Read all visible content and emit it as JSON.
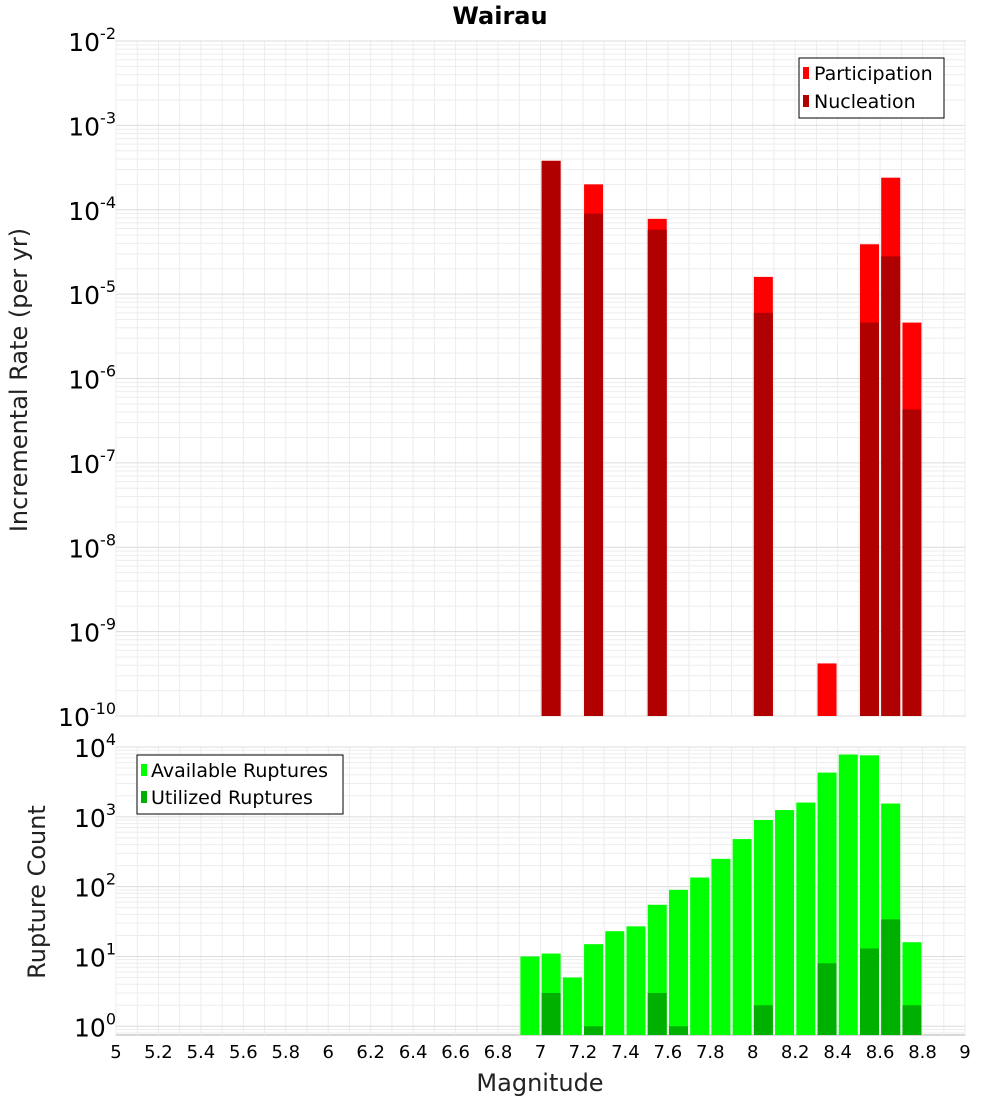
{
  "chart_data": [
    {
      "type": "bar",
      "title": "Wairau",
      "ylabel": "Incremental Rate (per yr)",
      "yscale": "log",
      "ylim": [
        1e-10,
        0.01
      ],
      "xlim": [
        5,
        9
      ],
      "grid": true,
      "legend_position": "top-right",
      "x": [
        7.05,
        7.25,
        7.55,
        8.05,
        8.35,
        8.55,
        8.65,
        8.75
      ],
      "series": [
        {
          "name": "Participation",
          "color": "#ff0000",
          "values": [
            0.00038,
            0.0002,
            7.8e-05,
            1.6e-05,
            4.2e-10,
            3.9e-05,
            0.00024,
            4.6e-06
          ]
        },
        {
          "name": "Nucleation",
          "color": "#b00000",
          "values": [
            0.00038,
            9e-05,
            5.8e-05,
            6e-06,
            null,
            4.6e-06,
            2.8e-05,
            4.3e-07
          ]
        }
      ]
    },
    {
      "type": "bar",
      "xlabel": "Magnitude",
      "ylabel": "Rupture Count",
      "yscale": "log",
      "ylim": [
        0.75,
        10000
      ],
      "xlim": [
        5,
        9
      ],
      "grid": true,
      "legend_position": "top-left",
      "x_ticks": [
        "5",
        "5.2",
        "5.4",
        "5.6",
        "5.8",
        "6",
        "6.2",
        "6.4",
        "6.6",
        "6.8",
        "7",
        "7.2",
        "7.4",
        "7.6",
        "7.8",
        "8",
        "8.2",
        "8.4",
        "8.6",
        "8.8",
        "9"
      ],
      "x": [
        6.95,
        7.05,
        7.15,
        7.25,
        7.35,
        7.45,
        7.55,
        7.65,
        7.75,
        7.85,
        7.95,
        8.05,
        8.15,
        8.25,
        8.35,
        8.45,
        8.55,
        8.65,
        8.75
      ],
      "series": [
        {
          "name": "Available Ruptures",
          "color": "#00ff00",
          "values": [
            10,
            11,
            5,
            15,
            23,
            27,
            55,
            90,
            135,
            250,
            480,
            900,
            1250,
            1600,
            4300,
            7800,
            7600,
            1550,
            16
          ]
        },
        {
          "name": "Utilized Ruptures",
          "color": "#00b000",
          "values": [
            null,
            3,
            null,
            1,
            null,
            null,
            3,
            1,
            null,
            null,
            null,
            2,
            null,
            null,
            8,
            null,
            13,
            34,
            2
          ]
        }
      ]
    }
  ]
}
